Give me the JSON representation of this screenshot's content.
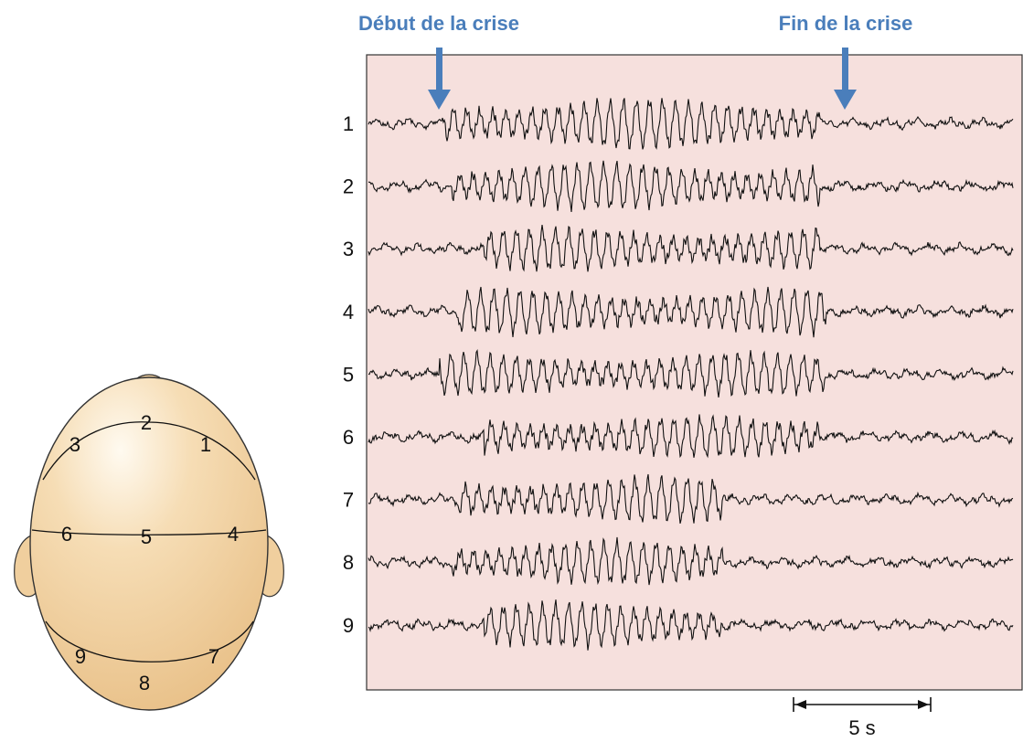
{
  "header": {
    "onset_label": "Début de la crise",
    "end_label": "Fin de la crise"
  },
  "colors": {
    "accent": "#4a7ebb",
    "panel_bg": "#f6e0dd",
    "head_fill": "#f2d2a2",
    "trace": "#111111"
  },
  "eeg": {
    "channels": [
      {
        "label": "1",
        "onset": 0.12,
        "end": 0.7,
        "amp": 0.95
      },
      {
        "label": "2",
        "onset": 0.13,
        "end": 0.7,
        "amp": 0.9
      },
      {
        "label": "3",
        "onset": 0.18,
        "end": 0.7,
        "amp": 0.8
      },
      {
        "label": "4",
        "onset": 0.14,
        "end": 0.71,
        "amp": 0.85
      },
      {
        "label": "5",
        "onset": 0.11,
        "end": 0.71,
        "amp": 0.8
      },
      {
        "label": "6",
        "onset": 0.18,
        "end": 0.7,
        "amp": 0.75
      },
      {
        "label": "7",
        "onset": 0.14,
        "end": 0.55,
        "amp": 0.85
      },
      {
        "label": "8",
        "onset": 0.13,
        "end": 0.55,
        "amp": 0.8
      },
      {
        "label": "9",
        "onset": 0.18,
        "end": 0.55,
        "amp": 0.85
      }
    ],
    "scale_bar_label": "5 s"
  },
  "head_diagram": {
    "electrodes": [
      "1",
      "2",
      "3",
      "4",
      "5",
      "6",
      "7",
      "8",
      "9"
    ]
  }
}
